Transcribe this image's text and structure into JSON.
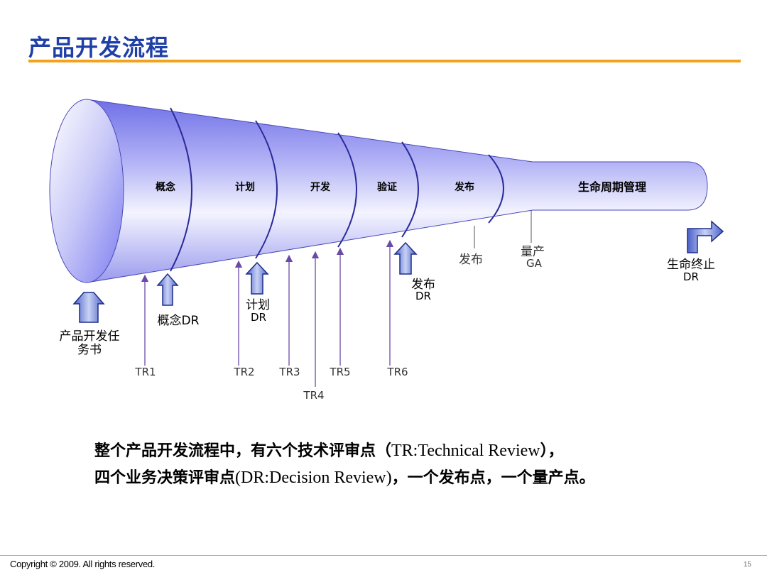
{
  "title": "产品开发流程",
  "stages": [
    "概念",
    "计划",
    "开发",
    "验证",
    "发布",
    "生命周期管理"
  ],
  "decision_points": {
    "start": [
      "产品开发任",
      "务书"
    ],
    "concept": "概念DR",
    "plan": [
      "计划",
      "DR"
    ],
    "release": [
      "发布",
      "DR"
    ],
    "end": [
      "生命终止",
      "DR"
    ]
  },
  "tech_reviews": [
    "TR1",
    "TR2",
    "TR3",
    "TR4",
    "TR5",
    "TR6"
  ],
  "milestones": {
    "release": "发布",
    "ga": [
      "量产",
      "GA"
    ]
  },
  "description": {
    "line1_a": "整个产品开发流程中，有六个技术评审点（",
    "line1_b": "TR:Technical Review",
    "line1_c": "），",
    "line2_a": "四个业务决策评审点",
    "line2_b": "(DR:Decision Review)",
    "line2_c": "，一个发布点，一个量产点。"
  },
  "footer": {
    "copyright": "Copyright © 2009. All rights reserved.",
    "page": "15"
  },
  "colors": {
    "title": "#1f3fa8",
    "rule": "#f2a31b",
    "funnel_dark": "#7d7df0",
    "funnel_light": "#f4f4ff",
    "arrow_line": "#6a4aa8",
    "block_arrow": "#7f90d8"
  }
}
